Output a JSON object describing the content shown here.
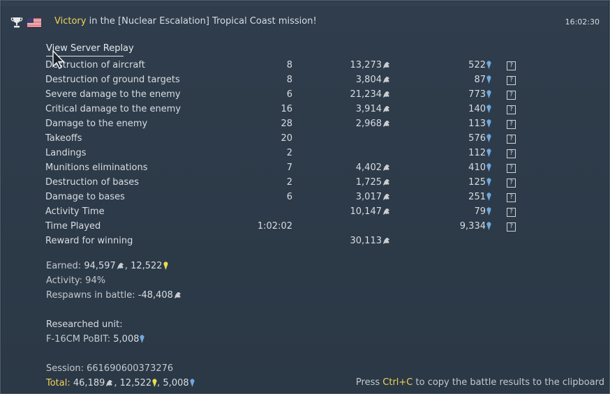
{
  "header": {
    "result_word": "Victory",
    "title_rest": " in the [Nuclear Escalation] Tropical Coast mission!",
    "time": "16:02:30"
  },
  "replay_link": "View Server Replay",
  "rows": [
    {
      "label": "Destruction of aircraft",
      "count": "8",
      "sl": "13,273",
      "rp": "522"
    },
    {
      "label": "Destruction of ground targets",
      "count": "8",
      "sl": "3,804",
      "rp": "87"
    },
    {
      "label": "Severe damage to the enemy",
      "count": "6",
      "sl": "21,234",
      "rp": "773"
    },
    {
      "label": "Critical damage to the enemy",
      "count": "16",
      "sl": "3,914",
      "rp": "140"
    },
    {
      "label": "Damage to the enemy",
      "count": "28",
      "sl": "2,968",
      "rp": "113"
    },
    {
      "label": "Takeoffs",
      "count": "20",
      "sl": "",
      "rp": "576"
    },
    {
      "label": "Landings",
      "count": "2",
      "sl": "",
      "rp": "112"
    },
    {
      "label": "Munitions eliminations",
      "count": "7",
      "sl": "4,402",
      "rp": "410"
    },
    {
      "label": "Destruction of bases",
      "count": "2",
      "sl": "1,725",
      "rp": "125"
    },
    {
      "label": "Damage to bases",
      "count": "6",
      "sl": "3,017",
      "rp": "251"
    },
    {
      "label": "Activity Time",
      "count": "",
      "sl": "10,147",
      "rp": "79"
    },
    {
      "label": "Time Played",
      "count": "1:02:02",
      "sl": "",
      "rp": "9,334"
    },
    {
      "label": "Reward for winning",
      "count": "",
      "sl": "30,113",
      "rp": ""
    }
  ],
  "help_glyph": "?",
  "summary": {
    "earned_label": "Earned:",
    "earned_sl": "94,597",
    "earned_ge": "12,522",
    "activity": "Activity: 94%",
    "respawns_label": "Respawns in battle:",
    "respawns_value": "-48,408",
    "researched_label": "Researched unit:",
    "unit_label": "F-16CM PoBIT:",
    "unit_rp": "5,008",
    "session": "Session: 661690600373276",
    "total_label": "Total:",
    "total_sl": "46,189",
    "total_ge": "12,522",
    "total_rp": "5,008"
  },
  "footer": {
    "press_pre": "Press ",
    "press_key": "Ctrl+C",
    "press_post": " to copy the battle results to the clipboard"
  },
  "icons": {
    "trophy": "trophy-icon",
    "flag": "usa-flag-icon",
    "silver_lions": "silver-lions-icon",
    "research_points": "research-points-icon",
    "golden_eagles": "golden-eagles-icon"
  },
  "colors": {
    "highlight": "#f2d25a",
    "rp": "#6fa8dc",
    "sl": "#c9cdd1"
  }
}
